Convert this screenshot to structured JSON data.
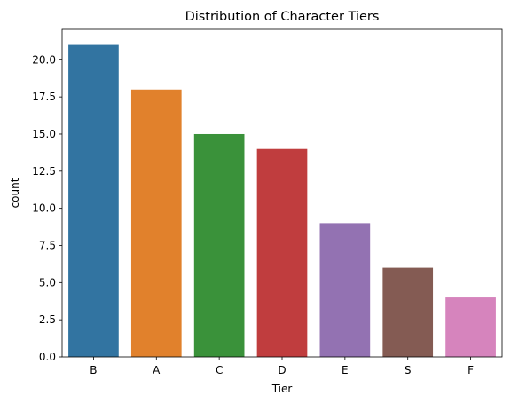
{
  "chart_data": {
    "type": "bar",
    "title": "Distribution of Character Tiers",
    "xlabel": "Tier",
    "ylabel": "count",
    "categories": [
      "B",
      "A",
      "C",
      "D",
      "E",
      "S",
      "F"
    ],
    "values": [
      21,
      18,
      15,
      14,
      9,
      6,
      4
    ],
    "colors": [
      "#3274a1",
      "#e1812c",
      "#3a923a",
      "#c03d3e",
      "#9372b2",
      "#845b53",
      "#d684bd"
    ],
    "ylim": [
      0,
      22.05
    ],
    "yticks": [
      0.0,
      2.5,
      5.0,
      7.5,
      10.0,
      12.5,
      15.0,
      17.5,
      20.0
    ],
    "ytick_labels": [
      "0.0",
      "2.5",
      "5.0",
      "7.5",
      "10.0",
      "12.5",
      "15.0",
      "17.5",
      "20.0"
    ],
    "grid": false,
    "legend": "none"
  }
}
